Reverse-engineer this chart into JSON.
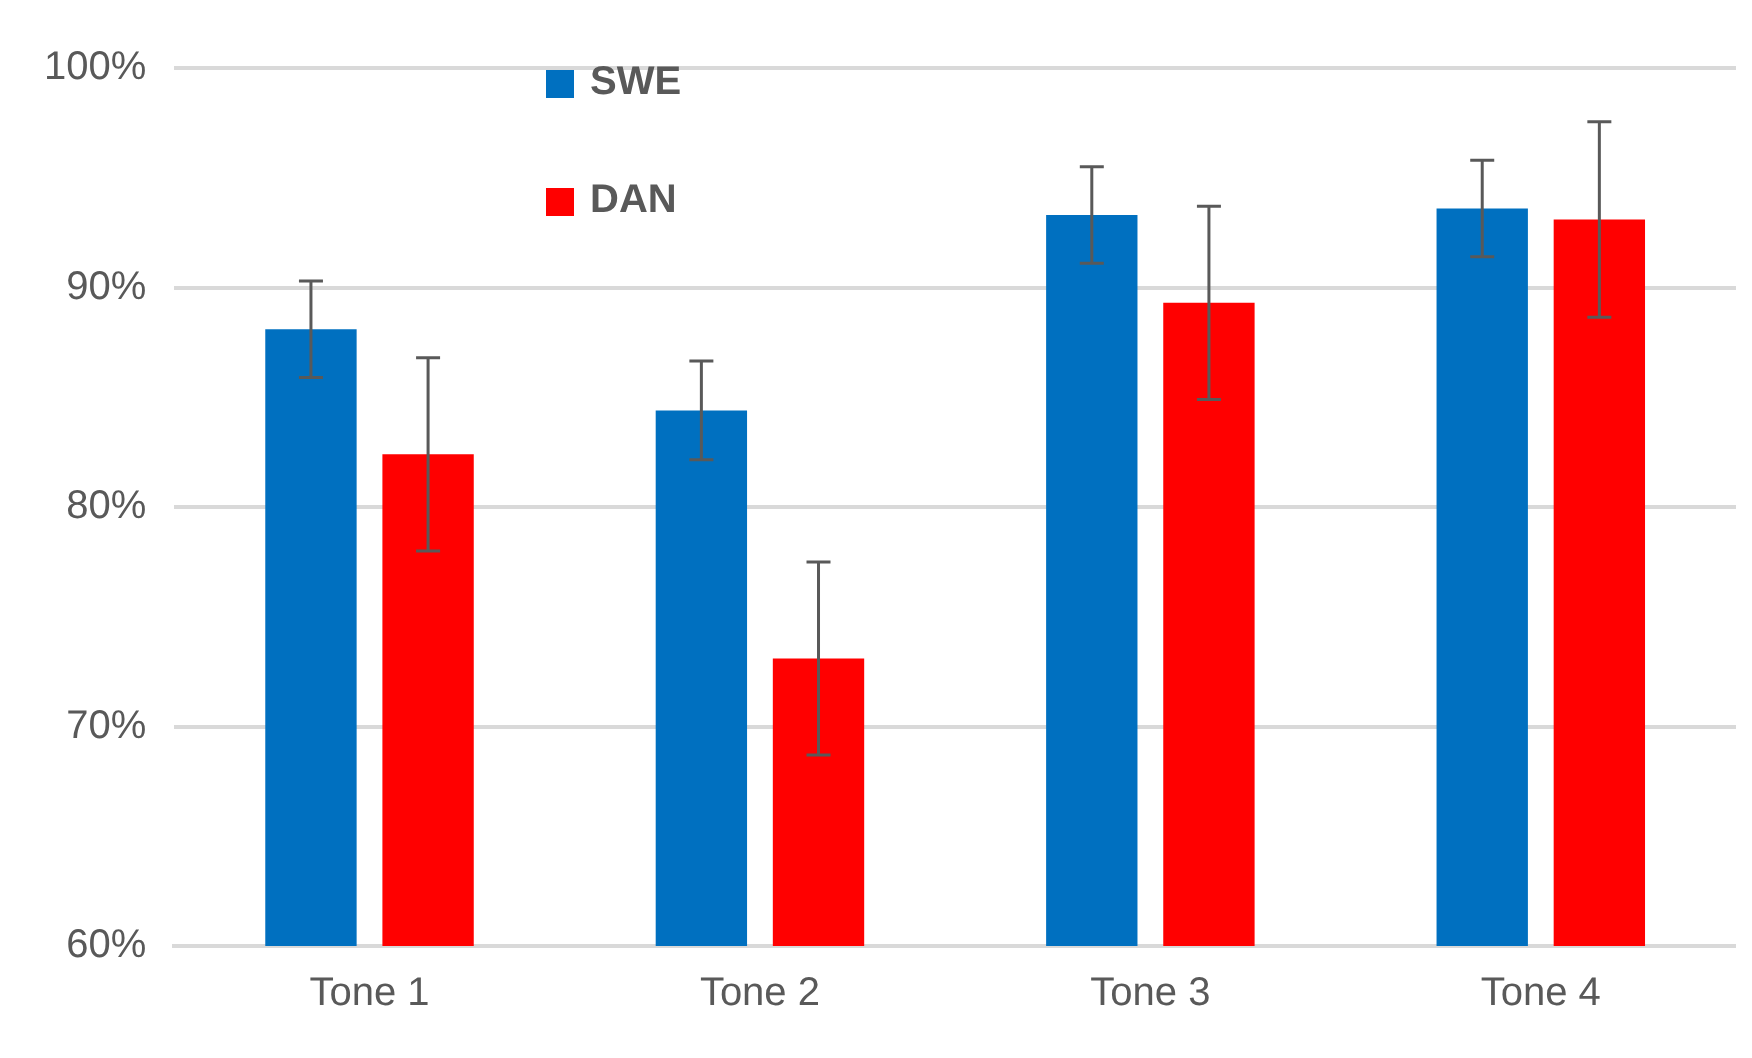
{
  "chart_data": {
    "type": "bar",
    "categories": [
      "Tone 1",
      "Tone 2",
      "Tone 3",
      "Tone 4"
    ],
    "series": [
      {
        "name": "SWE",
        "color": "#0070c0",
        "values": [
          88.1,
          84.4,
          93.3,
          93.6
        ],
        "errors": [
          2.2,
          2.25,
          2.2,
          2.2
        ]
      },
      {
        "name": "DAN",
        "color": "#ff0000",
        "values": [
          82.4,
          73.1,
          89.3,
          93.1
        ],
        "errors": [
          4.4,
          4.4,
          4.4,
          4.45
        ]
      }
    ],
    "ylim": [
      60,
      100
    ],
    "yticks": [
      {
        "value": 60,
        "label": "60%"
      },
      {
        "value": 70,
        "label": "70%"
      },
      {
        "value": 80,
        "label": "80%"
      },
      {
        "value": 90,
        "label": "90%"
      },
      {
        "value": 100,
        "label": "100%"
      }
    ],
    "grid": "y",
    "legend": "top left"
  }
}
